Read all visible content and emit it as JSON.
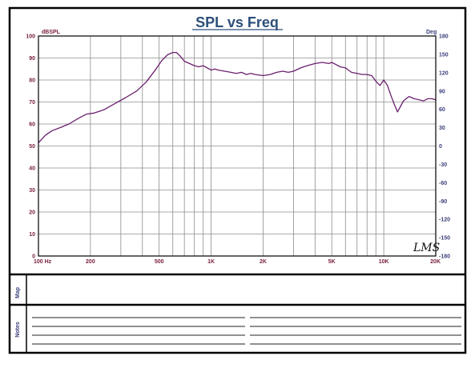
{
  "chart_data": {
    "type": "line",
    "title": "SPL vs Freq",
    "ylabel_left": "dBSPL",
    "ylabel_right": "Deg",
    "x_scale": "log",
    "xlim": [
      100,
      20000
    ],
    "ylim": [
      0,
      100
    ],
    "y2lim": [
      -180,
      180
    ],
    "x_tick_labels": [
      {
        "value": 100,
        "label": "100 Hz"
      },
      {
        "value": 200,
        "label": "200"
      },
      {
        "value": 500,
        "label": "500"
      },
      {
        "value": 1000,
        "label": "1K"
      },
      {
        "value": 2000,
        "label": "2K"
      },
      {
        "value": 5000,
        "label": "5K"
      },
      {
        "value": 10000,
        "label": "10K"
      },
      {
        "value": 20000,
        "label": "20K"
      }
    ],
    "y_ticks": [
      0,
      10,
      20,
      30,
      40,
      50,
      60,
      70,
      80,
      90,
      100
    ],
    "y2_ticks": [
      -180,
      -150,
      -120,
      -90,
      -60,
      -30,
      0,
      30,
      60,
      90,
      120,
      150,
      180
    ],
    "grid": true,
    "series": [
      {
        "color": "#6a1f6e",
        "x": [
          100,
          110,
          120,
          135,
          150,
          170,
          190,
          210,
          240,
          280,
          320,
          370,
          420,
          480,
          520,
          560,
          600,
          630,
          660,
          700,
          750,
          800,
          850,
          900,
          950,
          1000,
          1050,
          1100,
          1200,
          1300,
          1400,
          1500,
          1600,
          1700,
          1800,
          2000,
          2200,
          2400,
          2600,
          2800,
          3000,
          3300,
          3600,
          4000,
          4400,
          4800,
          5000,
          5300,
          5600,
          6000,
          6500,
          7000,
          7500,
          8000,
          8500,
          9000,
          9500,
          10000,
          10500,
          11000,
          11500,
          12000,
          12500,
          13000,
          14000,
          15000,
          16000,
          17000,
          18000,
          19000,
          20000
        ],
        "y": [
          51.5,
          55,
          57,
          58.5,
          60,
          62.5,
          64.5,
          65,
          66.5,
          69.5,
          72,
          75,
          79,
          85,
          89,
          91.5,
          92.5,
          92.5,
          91,
          88.5,
          87.5,
          86.5,
          86,
          86.5,
          85.5,
          84.5,
          85,
          84.5,
          84,
          83.5,
          83,
          83.5,
          82.5,
          83,
          82.5,
          82,
          82.5,
          83.5,
          84,
          83.5,
          84,
          85.5,
          86.5,
          87.5,
          88,
          87.5,
          88,
          87,
          86,
          85.5,
          83.5,
          83,
          82.5,
          82.5,
          82,
          79.5,
          77.5,
          80,
          77.5,
          73,
          69,
          65.5,
          68,
          70.5,
          72.5,
          71.5,
          71,
          70.5,
          71.5,
          71.5,
          71
        ]
      }
    ]
  },
  "signature": "LMS",
  "sections": {
    "map_label": "Map",
    "notes_label": "Notes"
  }
}
